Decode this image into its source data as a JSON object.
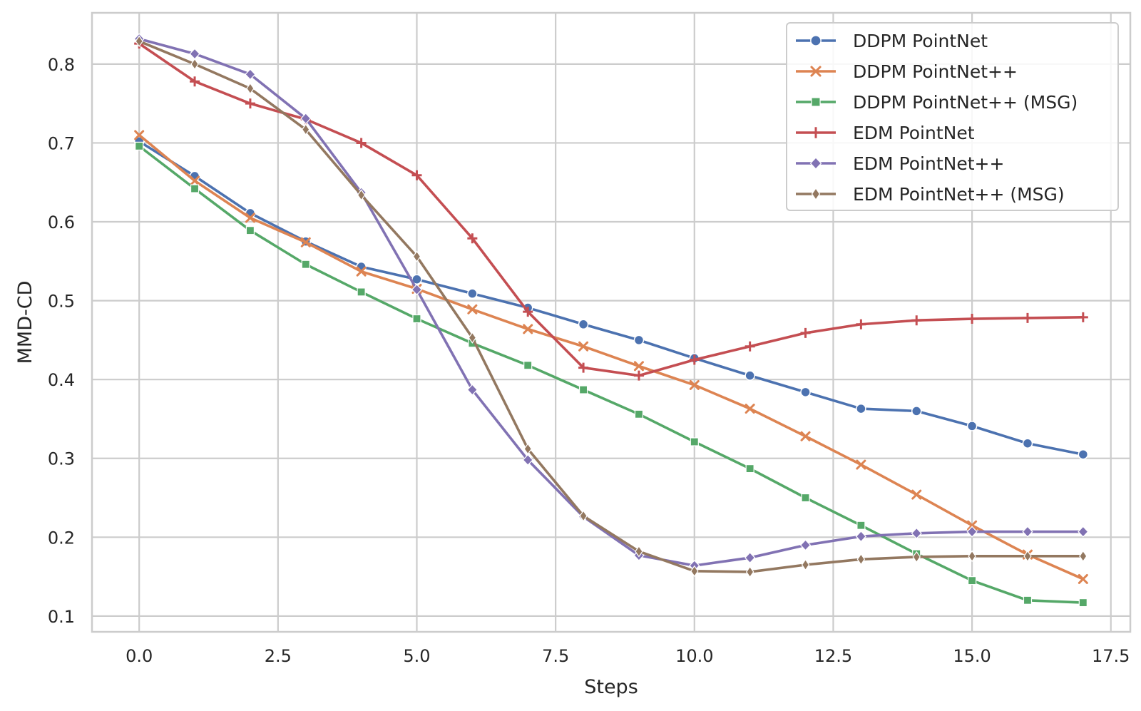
{
  "chart_data": {
    "type": "line",
    "title": "",
    "xlabel": "Steps",
    "ylabel": "MMD-CD",
    "xlim": [
      -0.85,
      17.85
    ],
    "ylim": [
      0.08,
      0.865
    ],
    "xticks": [
      0,
      2.5,
      5,
      7.5,
      10,
      12.5,
      15,
      17.5
    ],
    "xtick_labels": [
      "0.0",
      "2.5",
      "5.0",
      "7.5",
      "10.0",
      "12.5",
      "15.0",
      "17.5"
    ],
    "yticks": [
      0.1,
      0.2,
      0.3,
      0.4,
      0.5,
      0.6,
      0.7,
      0.8
    ],
    "ytick_labels": [
      "0.1",
      "0.2",
      "0.3",
      "0.4",
      "0.5",
      "0.6",
      "0.7",
      "0.8"
    ],
    "grid": true,
    "legend_position": "top-right",
    "x": [
      0,
      1,
      2,
      3,
      4,
      5,
      6,
      7,
      8,
      9,
      10,
      11,
      12,
      13,
      14,
      15,
      16,
      17
    ],
    "series": [
      {
        "name": "DDPM PointNet",
        "color": "#4c72b0",
        "marker": "circle",
        "values": [
          0.702,
          0.658,
          0.611,
          0.575,
          0.543,
          0.527,
          0.509,
          0.491,
          0.47,
          0.45,
          0.427,
          0.405,
          0.384,
          0.363,
          0.36,
          0.341,
          0.319,
          0.305
        ]
      },
      {
        "name": "DDPM PointNet++",
        "color": "#dd8452",
        "marker": "x",
        "values": [
          0.71,
          0.652,
          0.605,
          0.574,
          0.537,
          0.515,
          0.489,
          0.464,
          0.442,
          0.417,
          0.393,
          0.363,
          0.328,
          0.292,
          0.254,
          0.215,
          0.178,
          0.147
        ]
      },
      {
        "name": "DDPM PointNet++ (MSG)",
        "color": "#55a868",
        "marker": "square",
        "values": [
          0.696,
          0.642,
          0.589,
          0.546,
          0.511,
          0.477,
          0.446,
          0.418,
          0.387,
          0.356,
          0.321,
          0.287,
          0.25,
          0.215,
          0.179,
          0.145,
          0.12,
          0.117
        ]
      },
      {
        "name": "EDM PointNet",
        "color": "#c44e52",
        "marker": "plus",
        "values": [
          0.826,
          0.778,
          0.75,
          0.73,
          0.7,
          0.659,
          0.579,
          0.486,
          0.415,
          0.405,
          0.425,
          0.442,
          0.459,
          0.47,
          0.475,
          0.477,
          0.478,
          0.479
        ]
      },
      {
        "name": "EDM PointNet++",
        "color": "#8172b3",
        "marker": "diamond",
        "values": [
          0.832,
          0.813,
          0.787,
          0.731,
          0.637,
          0.514,
          0.387,
          0.298,
          0.226,
          0.177,
          0.164,
          0.174,
          0.19,
          0.201,
          0.205,
          0.207,
          0.207,
          0.207
        ]
      },
      {
        "name": "EDM PointNet++ (MSG)",
        "color": "#937860",
        "marker": "thin-diamond",
        "values": [
          0.829,
          0.8,
          0.769,
          0.717,
          0.634,
          0.556,
          0.453,
          0.312,
          0.227,
          0.182,
          0.157,
          0.156,
          0.165,
          0.172,
          0.175,
          0.176,
          0.176,
          0.176
        ]
      }
    ]
  }
}
